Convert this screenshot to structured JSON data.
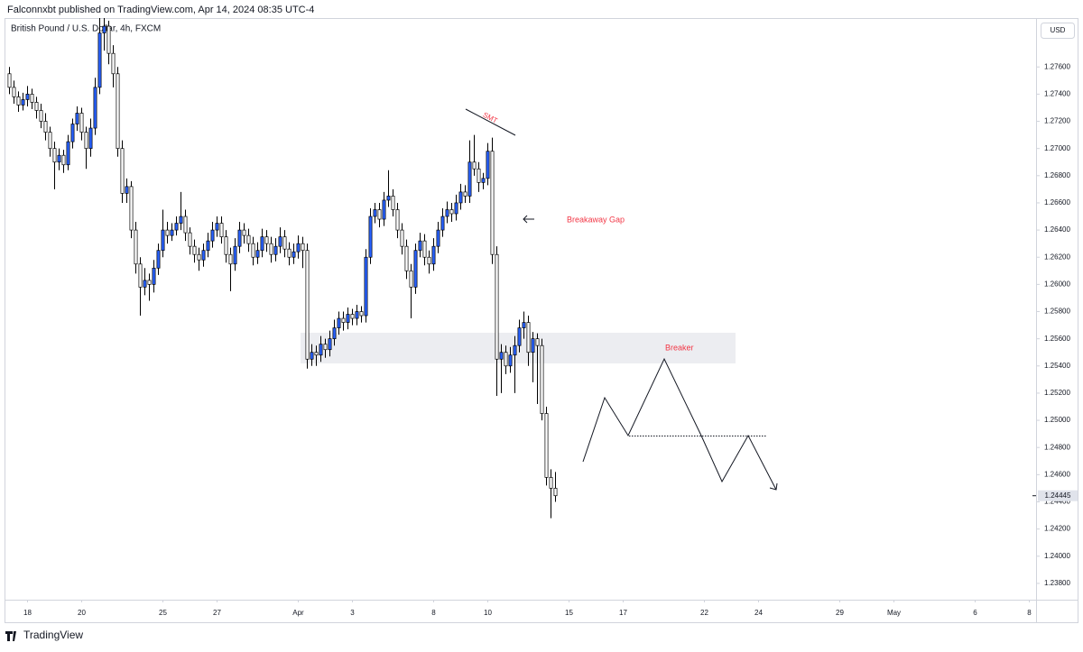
{
  "header": {
    "publisher": "Falconnxbt published on TradingView.com, Apr 14, 2024 08:35 UTC-4",
    "brand": "TradingView"
  },
  "chart_data": {
    "type": "candlestick",
    "title": "British Pound / U.S. Dollar, 4h, FXCM",
    "currency": "USD",
    "up_color": "#2962ff",
    "down_color": "#ffffff",
    "border_color": "#000000",
    "grid": false,
    "annotations": [
      "SMT",
      "Breakaway Gap",
      "Breaker"
    ],
    "ylim": [
      1.2368,
      1.2796
    ],
    "yticks": [
      {
        "value": 1.238,
        "label": "1.23800"
      },
      {
        "value": 1.24,
        "label": "1.24000"
      },
      {
        "value": 1.242,
        "label": "1.24200"
      },
      {
        "value": 1.244,
        "label": "1.24400"
      },
      {
        "value": 1.246,
        "label": "1.24600"
      },
      {
        "value": 1.248,
        "label": "1.24800"
      },
      {
        "value": 1.25,
        "label": "1.25000"
      },
      {
        "value": 1.252,
        "label": "1.25200"
      },
      {
        "value": 1.254,
        "label": "1.25400"
      },
      {
        "value": 1.256,
        "label": "1.25600"
      },
      {
        "value": 1.258,
        "label": "1.25800"
      },
      {
        "value": 1.26,
        "label": "1.26000"
      },
      {
        "value": 1.262,
        "label": "1.26200"
      },
      {
        "value": 1.264,
        "label": "1.26400"
      },
      {
        "value": 1.266,
        "label": "1.26600"
      },
      {
        "value": 1.268,
        "label": "1.26800"
      },
      {
        "value": 1.27,
        "label": "1.27000"
      },
      {
        "value": 1.272,
        "label": "1.27200"
      },
      {
        "value": 1.274,
        "label": "1.27400"
      },
      {
        "value": 1.276,
        "label": "1.27600"
      }
    ],
    "xlim": [
      -0.5,
      227.5
    ],
    "xticks": [
      {
        "value": 4,
        "label": "18"
      },
      {
        "value": 16,
        "label": "20"
      },
      {
        "value": 34,
        "label": "25"
      },
      {
        "value": 46,
        "label": "27"
      },
      {
        "value": 64,
        "label": "Apr"
      },
      {
        "value": 76,
        "label": "3"
      },
      {
        "value": 94,
        "label": "8"
      },
      {
        "value": 106,
        "label": "10"
      },
      {
        "value": 124,
        "label": "15"
      },
      {
        "value": 136,
        "label": "17"
      },
      {
        "value": 154,
        "label": "22"
      },
      {
        "value": 166,
        "label": "24"
      },
      {
        "value": 184,
        "label": "29"
      },
      {
        "value": 196,
        "label": "May"
      },
      {
        "value": 214,
        "label": "6"
      },
      {
        "value": 226,
        "label": "8"
      }
    ],
    "ohlc": [
      [
        1.2755,
        1.276,
        1.274,
        1.2745
      ],
      [
        1.2745,
        1.275,
        1.2733,
        1.2738
      ],
      [
        1.2738,
        1.2742,
        1.2727,
        1.2732
      ],
      [
        1.2732,
        1.2741,
        1.2728,
        1.2736
      ],
      [
        1.2736,
        1.2746,
        1.2731,
        1.274
      ],
      [
        1.274,
        1.2744,
        1.2729,
        1.2734
      ],
      [
        1.2734,
        1.2738,
        1.2722,
        1.2728
      ],
      [
        1.2728,
        1.2733,
        1.2715,
        1.272
      ],
      [
        1.272,
        1.2726,
        1.2706,
        1.2712
      ],
      [
        1.2712,
        1.2716,
        1.2694,
        1.27
      ],
      [
        1.27,
        1.2705,
        1.267,
        1.269
      ],
      [
        1.269,
        1.27,
        1.2684,
        1.2695
      ],
      [
        1.2695,
        1.2699,
        1.2682,
        1.2688
      ],
      [
        1.2688,
        1.271,
        1.2684,
        1.2705
      ],
      [
        1.2705,
        1.2722,
        1.27,
        1.2718
      ],
      [
        1.2718,
        1.2731,
        1.2713,
        1.2726
      ],
      [
        1.2726,
        1.273,
        1.2706,
        1.2712
      ],
      [
        1.2712,
        1.2716,
        1.2685,
        1.27
      ],
      [
        1.27,
        1.2722,
        1.2694,
        1.2715
      ],
      [
        1.2715,
        1.2752,
        1.271,
        1.2745
      ],
      [
        1.2745,
        1.2796,
        1.274,
        1.2785
      ],
      [
        1.2785,
        1.2796,
        1.2772,
        1.279
      ],
      [
        1.279,
        1.2794,
        1.2762,
        1.277
      ],
      [
        1.277,
        1.2776,
        1.2745,
        1.2755
      ],
      [
        1.2755,
        1.276,
        1.2694,
        1.27
      ],
      [
        1.27,
        1.2706,
        1.266,
        1.2667
      ],
      [
        1.2667,
        1.2678,
        1.266,
        1.2672
      ],
      [
        1.2672,
        1.2676,
        1.2634,
        1.264
      ],
      [
        1.264,
        1.2646,
        1.2608,
        1.2615
      ],
      [
        1.2615,
        1.262,
        1.2577,
        1.2598
      ],
      [
        1.2598,
        1.2612,
        1.2592,
        1.2603
      ],
      [
        1.2603,
        1.2608,
        1.2588,
        1.26
      ],
      [
        1.26,
        1.2618,
        1.2594,
        1.2612
      ],
      [
        1.2612,
        1.263,
        1.2607,
        1.2625
      ],
      [
        1.2625,
        1.2655,
        1.262,
        1.264
      ],
      [
        1.264,
        1.2646,
        1.263,
        1.2636
      ],
      [
        1.2636,
        1.2645,
        1.2632,
        1.264
      ],
      [
        1.264,
        1.265,
        1.2636,
        1.2645
      ],
      [
        1.2645,
        1.2668,
        1.264,
        1.265
      ],
      [
        1.265,
        1.2655,
        1.2632,
        1.2638
      ],
      [
        1.2638,
        1.2642,
        1.2622,
        1.2628
      ],
      [
        1.2628,
        1.2633,
        1.2616,
        1.2622
      ],
      [
        1.2622,
        1.2627,
        1.261,
        1.2618
      ],
      [
        1.2618,
        1.263,
        1.2613,
        1.2625
      ],
      [
        1.2625,
        1.2638,
        1.262,
        1.2632
      ],
      [
        1.2632,
        1.2646,
        1.2627,
        1.264
      ],
      [
        1.264,
        1.265,
        1.2635,
        1.2645
      ],
      [
        1.2645,
        1.265,
        1.263,
        1.2635
      ],
      [
        1.2635,
        1.264,
        1.2616,
        1.2622
      ],
      [
        1.2622,
        1.2627,
        1.2595,
        1.2615
      ],
      [
        1.2615,
        1.2634,
        1.261,
        1.2628
      ],
      [
        1.2628,
        1.2646,
        1.2623,
        1.264
      ],
      [
        1.264,
        1.2645,
        1.263,
        1.2636
      ],
      [
        1.2636,
        1.2641,
        1.2624,
        1.263
      ],
      [
        1.263,
        1.2635,
        1.2614,
        1.262
      ],
      [
        1.262,
        1.2631,
        1.2615,
        1.2625
      ],
      [
        1.2625,
        1.2641,
        1.262,
        1.2635
      ],
      [
        1.2635,
        1.264,
        1.2624,
        1.263
      ],
      [
        1.263,
        1.2635,
        1.2616,
        1.2622
      ],
      [
        1.2622,
        1.2634,
        1.2617,
        1.2628
      ],
      [
        1.2628,
        1.2642,
        1.2623,
        1.2635
      ],
      [
        1.2635,
        1.264,
        1.262,
        1.2626
      ],
      [
        1.2626,
        1.2631,
        1.2614,
        1.262
      ],
      [
        1.262,
        1.263,
        1.2615,
        1.2624
      ],
      [
        1.2624,
        1.2636,
        1.2619,
        1.263
      ],
      [
        1.263,
        1.2635,
        1.2612,
        1.2625
      ],
      [
        1.2625,
        1.263,
        1.2538,
        1.2545
      ],
      [
        1.2545,
        1.2556,
        1.254,
        1.255
      ],
      [
        1.255,
        1.2555,
        1.254,
        1.2548
      ],
      [
        1.2548,
        1.2562,
        1.2543,
        1.2556
      ],
      [
        1.2556,
        1.256,
        1.2546,
        1.2552
      ],
      [
        1.2552,
        1.2566,
        1.2547,
        1.256
      ],
      [
        1.256,
        1.2574,
        1.2555,
        1.2568
      ],
      [
        1.2568,
        1.258,
        1.2563,
        1.2575
      ],
      [
        1.2575,
        1.258,
        1.2566,
        1.2572
      ],
      [
        1.2572,
        1.2583,
        1.2567,
        1.2578
      ],
      [
        1.2578,
        1.2582,
        1.257,
        1.2575
      ],
      [
        1.2575,
        1.2585,
        1.257,
        1.258
      ],
      [
        1.258,
        1.2584,
        1.2572,
        1.2577
      ],
      [
        1.2577,
        1.2626,
        1.2572,
        1.262
      ],
      [
        1.262,
        1.2656,
        1.2615,
        1.265
      ],
      [
        1.265,
        1.266,
        1.2645,
        1.2655
      ],
      [
        1.2655,
        1.266,
        1.2642,
        1.2648
      ],
      [
        1.2648,
        1.2668,
        1.2643,
        1.2662
      ],
      [
        1.2662,
        1.2684,
        1.2657,
        1.2665
      ],
      [
        1.2665,
        1.267,
        1.265,
        1.2655
      ],
      [
        1.2655,
        1.266,
        1.2634,
        1.264
      ],
      [
        1.264,
        1.2645,
        1.2622,
        1.2628
      ],
      [
        1.2628,
        1.2633,
        1.2604,
        1.261
      ],
      [
        1.261,
        1.2615,
        1.2575,
        1.2598
      ],
      [
        1.2598,
        1.263,
        1.2593,
        1.2625
      ],
      [
        1.2625,
        1.2638,
        1.262,
        1.2632
      ],
      [
        1.2632,
        1.2637,
        1.2614,
        1.262
      ],
      [
        1.262,
        1.2625,
        1.2608,
        1.2615
      ],
      [
        1.2615,
        1.2634,
        1.261,
        1.2628
      ],
      [
        1.2628,
        1.2646,
        1.2623,
        1.264
      ],
      [
        1.264,
        1.2656,
        1.2635,
        1.265
      ],
      [
        1.265,
        1.2661,
        1.2645,
        1.2655
      ],
      [
        1.2655,
        1.266,
        1.2646,
        1.2652
      ],
      [
        1.2652,
        1.2666,
        1.2647,
        1.266
      ],
      [
        1.266,
        1.2674,
        1.2655,
        1.2668
      ],
      [
        1.2668,
        1.2673,
        1.266,
        1.2665
      ],
      [
        1.2665,
        1.2706,
        1.266,
        1.269
      ],
      [
        1.269,
        1.271,
        1.268,
        1.2685
      ],
      [
        1.2685,
        1.269,
        1.2668,
        1.2675
      ],
      [
        1.2675,
        1.2682,
        1.267,
        1.2678
      ],
      [
        1.2678,
        1.2704,
        1.2673,
        1.2698
      ],
      [
        1.2698,
        1.2708,
        1.2615,
        1.2622
      ],
      [
        1.2622,
        1.2628,
        1.2518,
        1.2545
      ],
      [
        1.2545,
        1.2556,
        1.252,
        1.255
      ],
      [
        1.255,
        1.2555,
        1.2534,
        1.254
      ],
      [
        1.254,
        1.2554,
        1.2535,
        1.2548
      ],
      [
        1.2548,
        1.2562,
        1.252,
        1.2555
      ],
      [
        1.2555,
        1.2574,
        1.255,
        1.2568
      ],
      [
        1.2568,
        1.258,
        1.256,
        1.2572
      ],
      [
        1.2572,
        1.2577,
        1.254,
        1.255
      ],
      [
        1.255,
        1.2565,
        1.2528,
        1.256
      ],
      [
        1.256,
        1.2564,
        1.2512,
        1.2555
      ],
      [
        1.2555,
        1.256,
        1.25,
        1.2505
      ],
      [
        1.2505,
        1.251,
        1.2452,
        1.2458
      ],
      [
        1.2458,
        1.2464,
        1.2428,
        1.245
      ],
      [
        1.245,
        1.2462,
        1.244,
        1.24445
      ]
    ]
  }
}
